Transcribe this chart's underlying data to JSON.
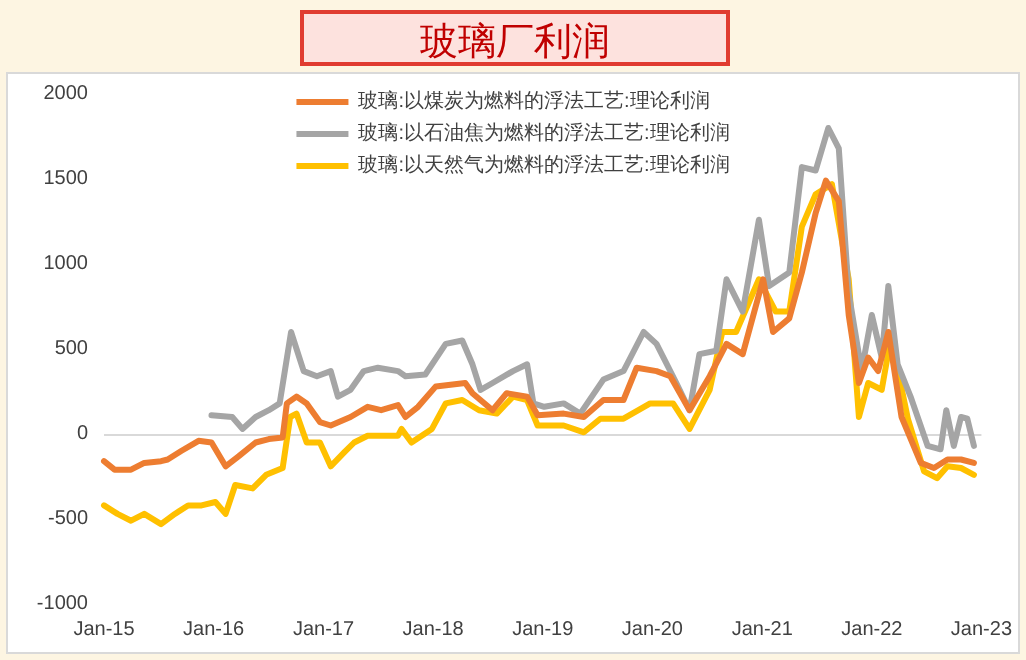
{
  "chart_data": {
    "type": "line",
    "title": "玻璃厂利润",
    "xlim": [
      "2015-01-01",
      "2023-01-01"
    ],
    "xticks": [
      {
        "value": "2015-01-01",
        "label": "Jan-15"
      },
      {
        "value": "2016-01-01",
        "label": "Jan-16"
      },
      {
        "value": "2017-01-01",
        "label": "Jan-17"
      },
      {
        "value": "2018-01-01",
        "label": "Jan-18"
      },
      {
        "value": "2019-01-01",
        "label": "Jan-19"
      },
      {
        "value": "2020-01-01",
        "label": "Jan-20"
      },
      {
        "value": "2021-01-01",
        "label": "Jan-21"
      },
      {
        "value": "2022-01-01",
        "label": "Jan-22"
      },
      {
        "value": "2023-01-01",
        "label": "Jan-23"
      }
    ],
    "ylim": [
      -1000,
      2000
    ],
    "yticks": [
      -1000,
      -500,
      0,
      500,
      1000,
      1500,
      2000
    ],
    "grid": false,
    "legend": "top",
    "marker": "none",
    "line_style": "solid",
    "ref_lines": [
      {
        "axis": "y",
        "value": 0,
        "color": "#d9d9d9"
      }
    ],
    "series": [
      {
        "name": "玻璃:以煤炭为燃料的浮法工艺:理论利润",
        "color": "#ed7d31",
        "x": [
          "2015-01-01",
          "2015-02-05",
          "2015-04-01",
          "2015-05-15",
          "2015-07-10",
          "2015-08-01",
          "2015-09-15",
          "2015-11-12",
          "2015-12-25",
          "2016-02-10",
          "2016-03-25",
          "2016-05-20",
          "2016-07-03",
          "2016-08-18",
          "2016-09-01",
          "2016-10-03",
          "2016-11-06",
          "2016-12-20",
          "2017-01-25",
          "2017-04-01",
          "2017-05-28",
          "2017-07-12",
          "2017-09-06",
          "2017-10-01",
          "2017-11-12",
          "2018-01-10",
          "2018-04-18",
          "2018-05-12",
          "2018-07-18",
          "2018-09-03",
          "2018-11-10",
          "2018-12-15",
          "2019-03-12",
          "2019-05-18",
          "2019-07-22",
          "2019-09-27",
          "2019-11-10",
          "2020-01-15",
          "2020-03-01",
          "2020-05-04",
          "2020-07-10",
          "2020-09-04",
          "2020-10-28",
          "2021-01-04",
          "2021-02-06",
          "2021-04-01",
          "2021-05-13",
          "2021-06-28",
          "2021-08-01",
          "2021-09-13",
          "2021-10-16",
          "2021-11-19",
          "2021-12-20",
          "2022-01-22",
          "2022-02-25",
          "2022-04-10",
          "2022-06-13",
          "2022-07-27",
          "2022-09-10",
          "2022-10-25",
          "2022-12-07"
        ],
        "values": [
          -160,
          -210,
          -210,
          -170,
          -160,
          -150,
          -100,
          -40,
          -50,
          -190,
          -130,
          -50,
          -30,
          -20,
          180,
          220,
          180,
          70,
          50,
          100,
          160,
          140,
          170,
          100,
          160,
          280,
          300,
          240,
          140,
          240,
          220,
          110,
          120,
          100,
          200,
          200,
          390,
          370,
          340,
          140,
          340,
          530,
          470,
          910,
          600,
          680,
          950,
          1300,
          1490,
          1370,
          700,
          300,
          450,
          370,
          600,
          100,
          -170,
          -200,
          -150,
          -150,
          -170
        ]
      },
      {
        "name": "玻璃:以石油焦为燃料的浮法工艺:理论利润",
        "color": "#a5a5a5",
        "x": [
          "2015-12-25",
          "2016-03-03",
          "2016-04-06",
          "2016-05-20",
          "2016-07-03",
          "2016-08-08",
          "2016-09-15",
          "2016-10-27",
          "2016-12-10",
          "2017-01-25",
          "2017-02-18",
          "2017-04-01",
          "2017-05-15",
          "2017-07-01",
          "2017-09-06",
          "2017-10-01",
          "2017-12-06",
          "2018-02-12",
          "2018-04-08",
          "2018-05-12",
          "2018-06-08",
          "2018-07-18",
          "2018-09-24",
          "2018-11-10",
          "2018-12-01",
          "2019-01-06",
          "2019-03-12",
          "2019-05-06",
          "2019-07-22",
          "2019-09-27",
          "2019-12-03",
          "2020-01-15",
          "2020-03-21",
          "2020-05-04",
          "2020-06-06",
          "2020-08-01",
          "2020-09-04",
          "2020-10-28",
          "2020-12-21",
          "2021-01-24",
          "2021-04-01",
          "2021-05-13",
          "2021-06-28",
          "2021-08-09",
          "2021-09-13",
          "2021-10-16",
          "2021-11-28",
          "2022-01-01",
          "2022-02-03",
          "2022-02-25",
          "2022-03-28",
          "2022-05-10",
          "2022-07-06",
          "2022-08-18",
          "2022-09-06",
          "2022-10-01",
          "2022-10-25",
          "2022-11-15",
          "2022-12-07"
        ],
        "values": [
          110,
          100,
          30,
          100,
          140,
          180,
          600,
          370,
          340,
          370,
          220,
          260,
          370,
          390,
          370,
          340,
          350,
          530,
          550,
          410,
          260,
          300,
          370,
          410,
          180,
          160,
          180,
          120,
          320,
          370,
          600,
          530,
          300,
          140,
          470,
          490,
          910,
          720,
          1260,
          870,
          950,
          1570,
          1550,
          1800,
          1680,
          830,
          370,
          700,
          450,
          870,
          410,
          220,
          -70,
          -90,
          140,
          -70,
          100,
          90,
          -70
        ]
      },
      {
        "name": "玻璃:以天然气为燃料的浮法工艺:理论利润",
        "color": "#ffc000",
        "x": [
          "2015-01-01",
          "2015-02-15",
          "2015-04-01",
          "2015-05-15",
          "2015-07-10",
          "2015-08-25",
          "2015-10-08",
          "2015-11-22",
          "2016-01-07",
          "2016-02-10",
          "2016-03-13",
          "2016-05-10",
          "2016-06-24",
          "2016-08-18",
          "2016-09-12",
          "2016-10-03",
          "2016-11-06",
          "2016-12-20",
          "2017-01-25",
          "2017-03-10",
          "2017-04-13",
          "2017-05-28",
          "2017-08-03",
          "2017-09-06",
          "2017-09-18",
          "2017-10-21",
          "2017-12-28",
          "2018-02-12",
          "2018-04-08",
          "2018-06-03",
          "2018-08-01",
          "2018-09-24",
          "2018-11-10",
          "2018-12-15",
          "2019-03-12",
          "2019-05-18",
          "2019-07-12",
          "2019-09-27",
          "2019-12-25",
          "2020-03-10",
          "2020-05-04",
          "2020-07-10",
          "2020-08-21",
          "2020-10-06",
          "2020-12-21",
          "2021-02-15",
          "2021-04-01",
          "2021-05-13",
          "2021-06-28",
          "2021-08-21",
          "2021-10-16",
          "2021-11-19",
          "2021-12-20",
          "2022-02-03",
          "2022-03-06",
          "2022-05-01",
          "2022-06-24",
          "2022-08-06",
          "2022-09-10",
          "2022-10-25",
          "2022-12-07"
        ],
        "values": [
          -420,
          -470,
          -510,
          -470,
          -530,
          -470,
          -420,
          -420,
          -400,
          -470,
          -300,
          -320,
          -240,
          -200,
          100,
          120,
          -50,
          -50,
          -190,
          -110,
          -50,
          -10,
          -10,
          -10,
          30,
          -50,
          30,
          180,
          200,
          140,
          120,
          220,
          200,
          50,
          50,
          10,
          90,
          90,
          180,
          180,
          30,
          260,
          600,
          600,
          910,
          720,
          720,
          1220,
          1410,
          1470,
          910,
          100,
          300,
          260,
          570,
          90,
          -220,
          -260,
          -190,
          -200,
          -240
        ]
      }
    ]
  }
}
